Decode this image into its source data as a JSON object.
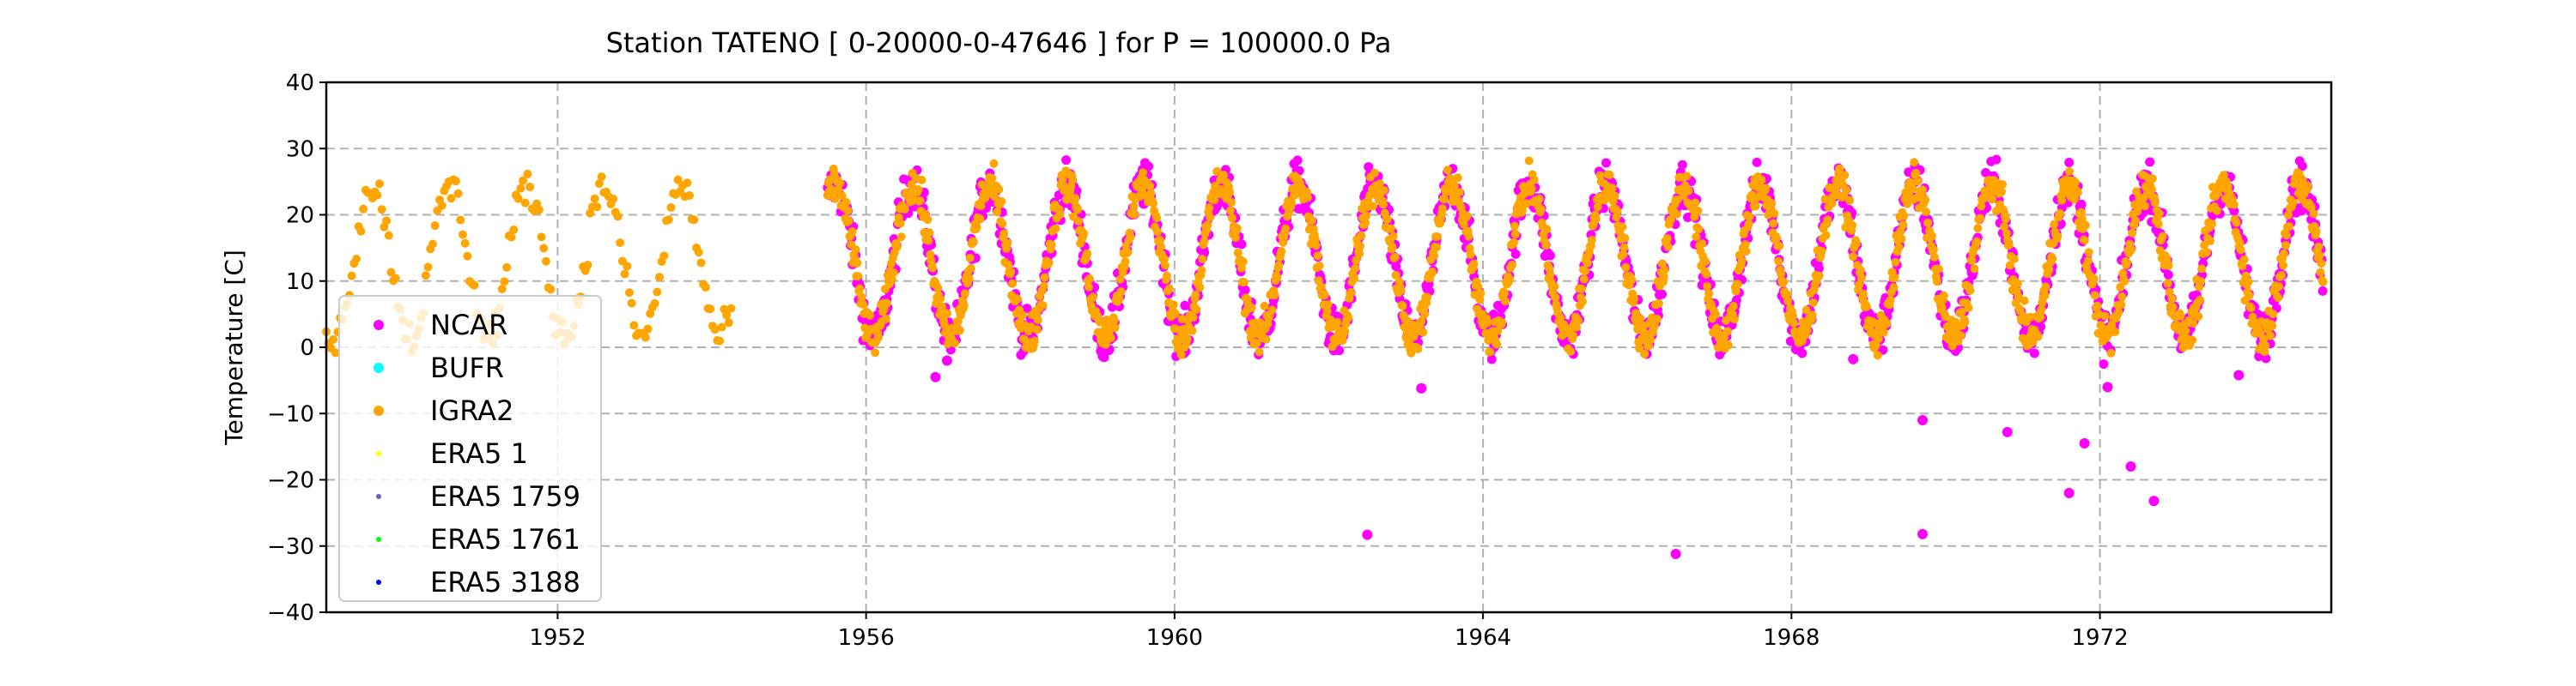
{
  "chart_data": {
    "type": "scatter",
    "title": "Station  TATENO [ 0-20000-0-47646 ]  for P = 100000.0 Pa",
    "ylabel": "Temperature [C]",
    "xlabel": "",
    "xlim": [
      1949.0,
      1975.0
    ],
    "ylim": [
      -40,
      40
    ],
    "x_ticks": [
      1952,
      1956,
      1960,
      1964,
      1968,
      1972
    ],
    "x_tick_labels": [
      "1952",
      "1956",
      "1960",
      "1964",
      "1968",
      "1972"
    ],
    "y_ticks": [
      -40,
      -30,
      -20,
      -10,
      0,
      10,
      20,
      30,
      40
    ],
    "y_tick_labels": [
      "−40",
      "−30",
      "−20",
      "−10",
      "0",
      "10",
      "20",
      "30",
      "40"
    ],
    "grid": true,
    "legend_position": "lower-left",
    "series": [
      {
        "name": "NCAR",
        "color": "#ff00ff",
        "marker": "circle-large",
        "coverage": [
          1955.5,
          1974.9
        ],
        "outliers": [
          [
            1956.9,
            -4.5
          ],
          [
            1957.05,
            -2.0
          ],
          [
            1962.5,
            -28.3
          ],
          [
            1963.2,
            -6.2
          ],
          [
            1966.5,
            -31.2
          ],
          [
            1968.8,
            -1.8
          ],
          [
            1969.7,
            -11.0
          ],
          [
            1969.7,
            -28.2
          ],
          [
            1970.8,
            -12.8
          ],
          [
            1971.6,
            -22.0
          ],
          [
            1971.8,
            -14.5
          ],
          [
            1972.1,
            -6.0
          ],
          [
            1972.4,
            -18.0
          ],
          [
            1972.7,
            -23.2
          ],
          [
            1973.8,
            -4.2
          ]
        ]
      },
      {
        "name": "BUFR",
        "color": "#00ffff",
        "marker": "circle"
      },
      {
        "name": "IGRA2",
        "color": "#ffa500",
        "marker": "circle",
        "coverage": [
          [
            1949.0,
            1954.25
          ],
          [
            1955.5,
            1974.9
          ]
        ]
      },
      {
        "name": "ERA5 1",
        "color": "#ffff00",
        "marker": "small-dot"
      },
      {
        "name": "ERA5 1759",
        "color": "#6a5acd",
        "marker": "small-dot"
      },
      {
        "name": "ERA5 1761",
        "color": "#00ff00",
        "marker": "small-dot"
      },
      {
        "name": "ERA5 3188",
        "color": "#0000ff",
        "marker": "small-dot"
      }
    ],
    "seasonal_cycle": {
      "mean_c": 13,
      "amplitude_c": 11.5,
      "peak_fraction_of_year": 0.6
    },
    "annotations": []
  }
}
